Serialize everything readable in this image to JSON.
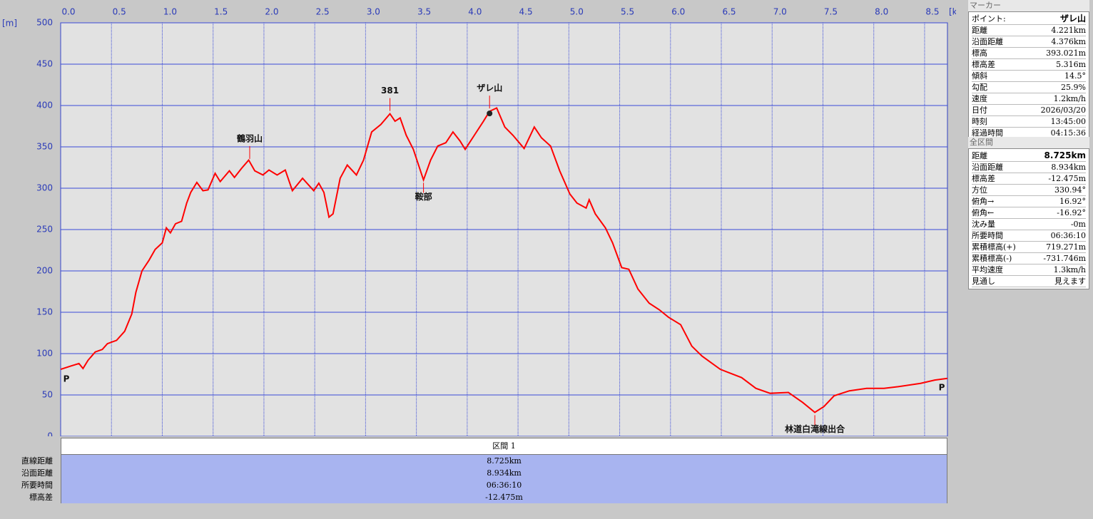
{
  "chart_data": {
    "type": "line",
    "x_label": "[km]",
    "y_label": "[m]",
    "color": "#ff0000",
    "grid": true,
    "xlim": [
      0,
      8.725
    ],
    "ylim": [
      0,
      500
    ],
    "xticks": [
      {
        "value": 0,
        "label": "0.0"
      },
      0.5,
      {
        "value": 1,
        "label": "1.0"
      },
      1.5,
      {
        "value": 2,
        "label": "2.0"
      },
      2.5,
      {
        "value": 3,
        "label": "3.0"
      },
      3.5,
      {
        "value": 4,
        "label": "4.0"
      },
      4.5,
      {
        "value": 5,
        "label": "5.0"
      },
      5.5,
      {
        "value": 6,
        "label": "6.0"
      },
      6.5,
      {
        "value": 7,
        "label": "7.0"
      },
      7.5,
      {
        "value": 8,
        "label": "8.0"
      },
      8.5
    ],
    "yticks": [
      0,
      50,
      100,
      150,
      200,
      250,
      300,
      350,
      400,
      450,
      500
    ],
    "x": [
      0,
      0.1,
      0.18,
      0.22,
      0.27,
      0.34,
      0.41,
      0.46,
      0.55,
      0.63,
      0.7,
      0.74,
      0.8,
      0.87,
      0.93,
      1.0,
      1.04,
      1.08,
      1.13,
      1.19,
      1.24,
      1.28,
      1.34,
      1.4,
      1.45,
      1.52,
      1.57,
      1.66,
      1.71,
      1.78,
      1.85,
      1.91,
      1.99,
      2.05,
      2.13,
      2.21,
      2.28,
      2.38,
      2.49,
      2.54,
      2.59,
      2.64,
      2.68,
      2.75,
      2.82,
      2.91,
      2.98,
      3.06,
      3.15,
      3.24,
      3.29,
      3.34,
      3.4,
      3.47,
      3.57,
      3.64,
      3.71,
      3.79,
      3.86,
      3.93,
      3.98,
      4.07,
      4.16,
      4.22,
      4.29,
      4.37,
      4.45,
      4.56,
      4.66,
      4.73,
      4.82,
      4.91,
      5.01,
      5.08,
      5.17,
      5.2,
      5.26,
      5.36,
      5.43,
      5.52,
      5.59,
      5.68,
      5.79,
      5.89,
      5.98,
      6.1,
      6.21,
      6.31,
      6.49,
      6.7,
      6.84,
      6.98,
      7.16,
      7.3,
      7.42,
      7.51,
      7.61,
      7.76,
      7.93,
      8.1,
      8.24,
      8.46,
      8.6,
      8.725
    ],
    "values": [
      81,
      85,
      88,
      82,
      92,
      102,
      105,
      112,
      116,
      127,
      148,
      174,
      200,
      213,
      226,
      234,
      252,
      246,
      257,
      260,
      282,
      295,
      307,
      297,
      298,
      318,
      308,
      321,
      313,
      324,
      334,
      321,
      316,
      322,
      316,
      322,
      297,
      312,
      297,
      306,
      295,
      265,
      269,
      312,
      328,
      316,
      334,
      368,
      377,
      390,
      381,
      385,
      364,
      347,
      310,
      334,
      351,
      355,
      368,
      357,
      347,
      364,
      381,
      393,
      397,
      374,
      364,
      348,
      374,
      361,
      351,
      321,
      293,
      282,
      276,
      286,
      269,
      252,
      234,
      204,
      202,
      178,
      161,
      153,
      144,
      135,
      109,
      97,
      81,
      71,
      58,
      52,
      53,
      41,
      29,
      36,
      49,
      55,
      58,
      58,
      60,
      64,
      68,
      70
    ],
    "annotations": [
      {
        "text": "P",
        "x": 0,
        "y": 81,
        "position": "start"
      },
      {
        "text": "鶴羽山",
        "x": 1.86,
        "y": 332,
        "position": "above"
      },
      {
        "text": "381",
        "x": 3.24,
        "y": 390,
        "position": "above"
      },
      {
        "text": "鞍部",
        "x": 3.57,
        "y": 310,
        "position": "below"
      },
      {
        "text": "ザレ山",
        "x": 4.22,
        "y": 393,
        "position": "above"
      },
      {
        "text": "林道白滝線出合",
        "x": 7.42,
        "y": 29,
        "position": "below"
      },
      {
        "text": "P",
        "x": 8.725,
        "y": 70,
        "position": "end"
      }
    ]
  },
  "section_table": {
    "header": "区間 1",
    "rows": [
      [
        "直線距離",
        "8.725km"
      ],
      [
        "沿面距離",
        "8.934km"
      ],
      [
        "所要時間",
        "06:36:10"
      ],
      [
        "標高差",
        "-12.475m"
      ]
    ]
  },
  "marker_panel": {
    "title": "マーカー",
    "rows": [
      [
        "ポイント:",
        "ザレ山"
      ],
      [
        "距離",
        "4.221km"
      ],
      [
        "沿面距離",
        "4.376km"
      ],
      [
        "標高",
        "393.021m"
      ],
      [
        "標高差",
        "5.316m"
      ],
      [
        "傾斜",
        "14.5°"
      ],
      [
        "勾配",
        "25.9%"
      ],
      [
        "速度",
        "1.2km/h"
      ],
      [
        "日付",
        "2026/03/20"
      ],
      [
        "時刻",
        "13:45:00"
      ],
      [
        "経過時間",
        "04:15:36"
      ]
    ]
  },
  "total_panel": {
    "title": "全区間",
    "rows": [
      [
        "距離",
        "8.725km"
      ],
      [
        "沿面距離",
        "8.934km"
      ],
      [
        "標高差",
        "-12.475m"
      ],
      [
        "方位",
        "330.94°"
      ],
      [
        "俯角→",
        "16.92°"
      ],
      [
        "俯角←",
        "-16.92°"
      ],
      [
        "沈み量",
        "-0m"
      ],
      [
        "所要時間",
        "06:36:10"
      ],
      [
        "累積標高(+)",
        "719.271m"
      ],
      [
        "累積標高(-)",
        "-731.746m"
      ],
      [
        "平均速度",
        "1.3km/h"
      ],
      [
        "見通し",
        "見えます"
      ]
    ]
  }
}
